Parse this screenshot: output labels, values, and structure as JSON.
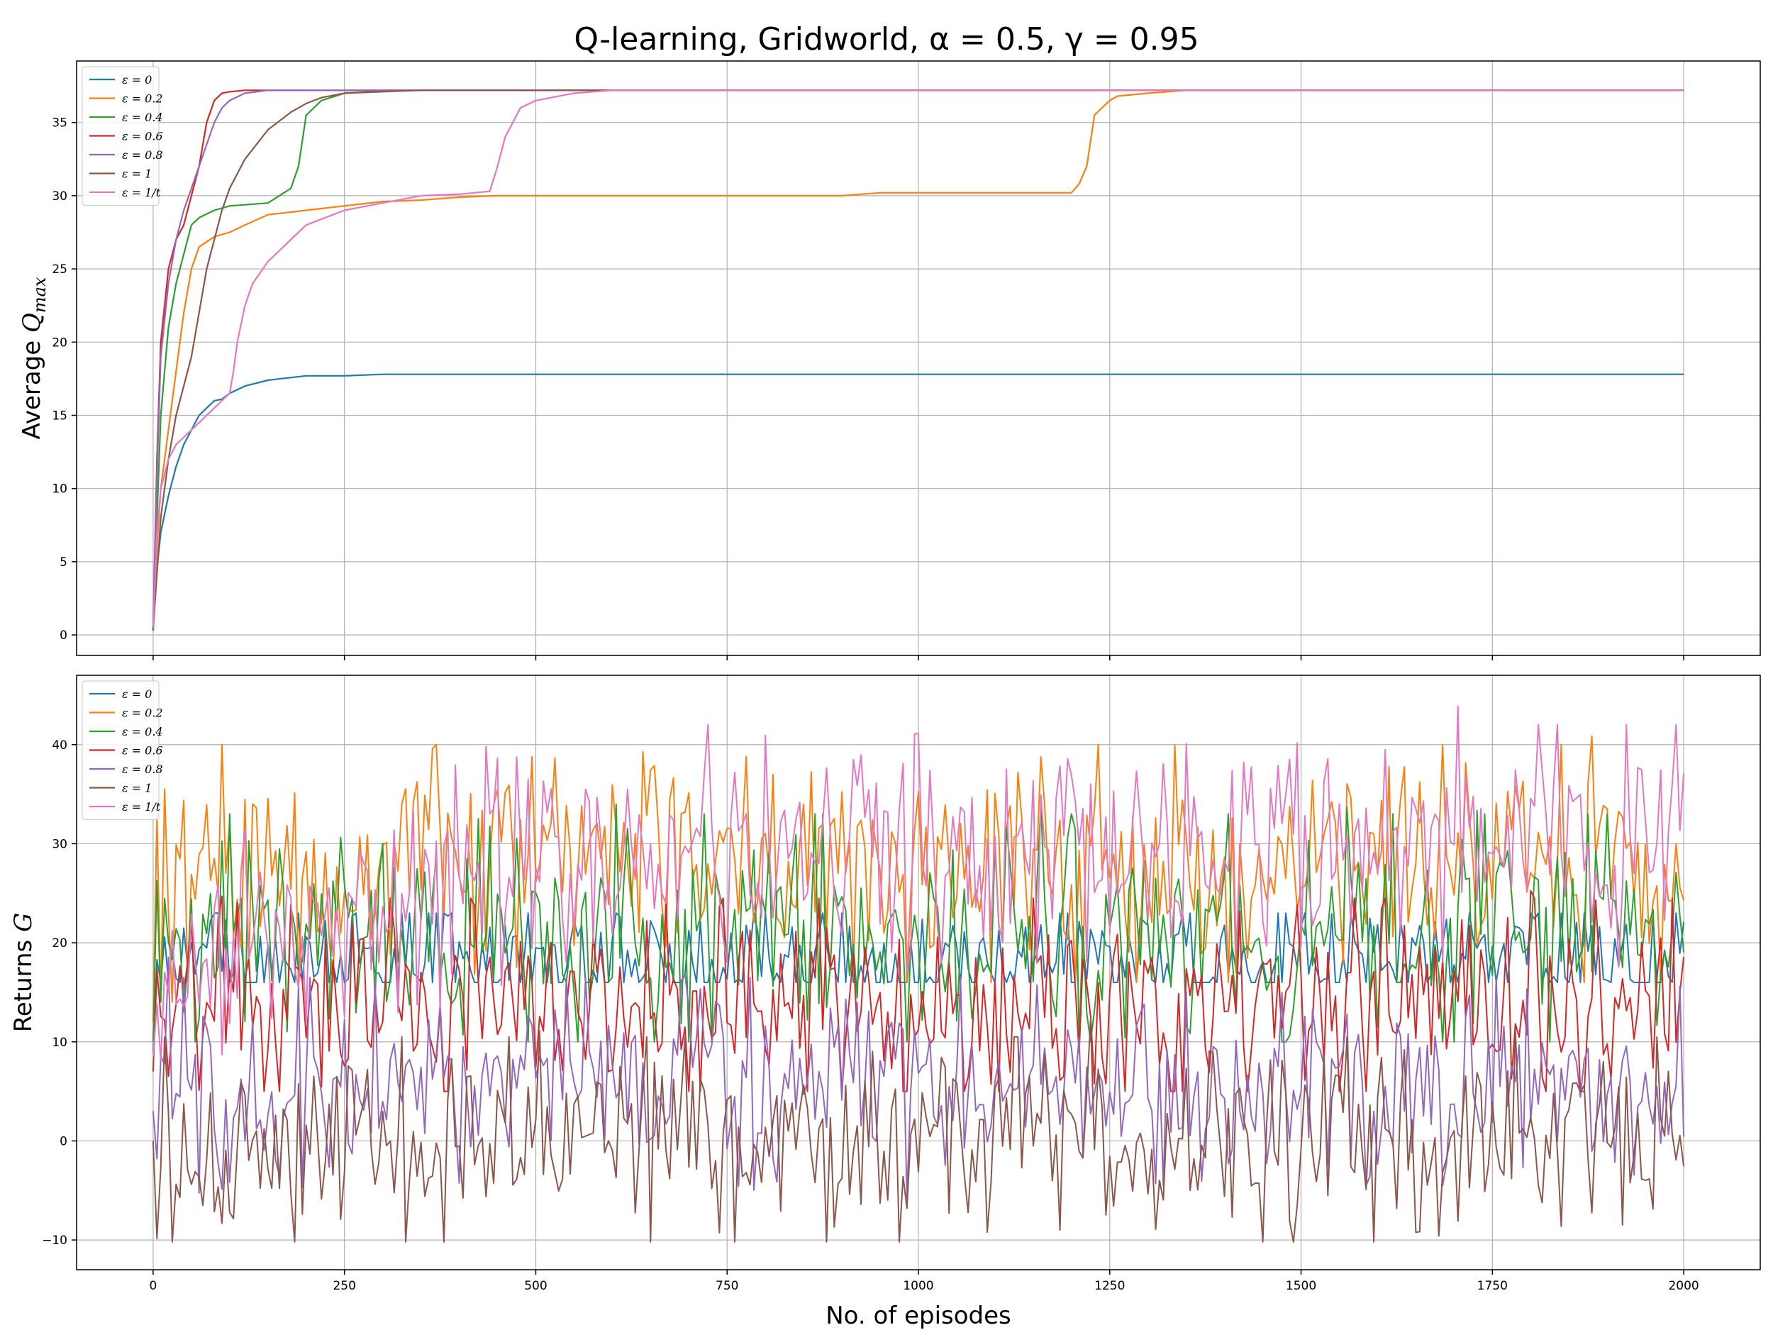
{
  "figure": {
    "title": "Q-learning, Gridworld, α = 0.5, γ = 0.95"
  },
  "chart_data": [
    {
      "type": "line",
      "ylabel": "Average Q_max",
      "xlabel": "",
      "xlim": [
        -100,
        2100
      ],
      "ylim": [
        -1.4,
        39.2
      ],
      "xticks": [
        0,
        250,
        500,
        750,
        1000,
        1250,
        1500,
        1750,
        2000
      ],
      "yticks": [
        0,
        5,
        10,
        15,
        20,
        25,
        30,
        35
      ],
      "grid": true,
      "legend_position": "top-left",
      "series": [
        {
          "name": "ε = 0",
          "color": "#1f77b4",
          "x": [
            0,
            5,
            10,
            20,
            30,
            40,
            50,
            60,
            70,
            80,
            90,
            100,
            120,
            150,
            200,
            250,
            300,
            400,
            2000
          ],
          "y": [
            0.3,
            4.5,
            7,
            9.5,
            11.5,
            13,
            14,
            15,
            15.5,
            16,
            16.1,
            16.5,
            17,
            17.4,
            17.7,
            17.7,
            17.8,
            17.8,
            17.8
          ]
        },
        {
          "name": "ε = 0.2",
          "color": "#ff7f0e",
          "x": [
            0,
            5,
            10,
            20,
            30,
            40,
            50,
            60,
            80,
            100,
            120,
            150,
            200,
            250,
            300,
            350,
            400,
            450,
            500,
            900,
            950,
            1000,
            1200,
            1210,
            1220,
            1230,
            1240,
            1250,
            1260,
            1300,
            1350,
            2000
          ],
          "y": [
            0.5,
            6,
            10,
            14,
            18,
            22,
            25,
            26.5,
            27.2,
            27.5,
            28,
            28.7,
            29,
            29.3,
            29.6,
            29.7,
            29.9,
            30,
            30,
            30,
            30.2,
            30.2,
            30.2,
            30.8,
            32,
            35.5,
            36,
            36.5,
            36.8,
            37,
            37.2,
            37.2
          ]
        },
        {
          "name": "ε = 0.4",
          "color": "#2ca02c",
          "x": [
            0,
            5,
            10,
            20,
            30,
            40,
            50,
            60,
            80,
            100,
            150,
            180,
            190,
            200,
            210,
            220,
            250,
            280,
            300,
            2000
          ],
          "y": [
            0.4,
            8,
            15,
            21,
            24,
            26,
            28,
            28.5,
            29,
            29.3,
            29.5,
            30.5,
            32,
            35.5,
            36,
            36.5,
            37,
            37.1,
            37.2,
            37.2
          ]
        },
        {
          "name": "ε = 0.6",
          "color": "#d62728",
          "x": [
            0,
            5,
            10,
            20,
            30,
            40,
            50,
            60,
            70,
            80,
            90,
            100,
            120,
            150,
            2000
          ],
          "y": [
            0.5,
            12,
            20,
            25,
            27,
            28,
            30,
            32,
            35,
            36.5,
            37,
            37.1,
            37.2,
            37.2,
            37.2
          ]
        },
        {
          "name": "ε = 0.8",
          "color": "#9467bd",
          "x": [
            0,
            5,
            10,
            20,
            30,
            40,
            50,
            60,
            70,
            80,
            90,
            100,
            120,
            150,
            2000
          ],
          "y": [
            0.5,
            11,
            19,
            24,
            27,
            29,
            30.5,
            32,
            33.5,
            35,
            36,
            36.5,
            37,
            37.2,
            37.2
          ]
        },
        {
          "name": "ε = 1",
          "color": "#8c564b",
          "x": [
            0,
            10,
            20,
            30,
            40,
            50,
            60,
            70,
            80,
            90,
            100,
            120,
            150,
            180,
            200,
            220,
            250,
            300,
            350,
            2000
          ],
          "y": [
            0.4,
            8,
            12,
            15,
            17,
            19,
            22,
            25,
            27,
            29,
            30.5,
            32.5,
            34.5,
            35.7,
            36.3,
            36.7,
            37,
            37.1,
            37.2,
            37.2
          ]
        },
        {
          "name": "ε = 1/t",
          "color": "#e377c2",
          "x": [
            0,
            5,
            10,
            20,
            30,
            40,
            50,
            60,
            80,
            100,
            105,
            110,
            120,
            130,
            150,
            180,
            200,
            250,
            300,
            350,
            400,
            440,
            450,
            460,
            470,
            480,
            500,
            550,
            600,
            2000
          ],
          "y": [
            0.5,
            7,
            10,
            12,
            13,
            13.5,
            14,
            14.5,
            15.5,
            16.5,
            18,
            20,
            22.5,
            24,
            25.5,
            27,
            28,
            29,
            29.5,
            30,
            30.1,
            30.3,
            32,
            34,
            35,
            36,
            36.5,
            37,
            37.2,
            37.2
          ]
        }
      ]
    },
    {
      "type": "line",
      "ylabel": "Returns G",
      "xlabel": "No. of episodes",
      "xlim": [
        -100,
        2100
      ],
      "ylim": [
        -13,
        47
      ],
      "xticks": [
        0,
        250,
        500,
        750,
        1000,
        1250,
        1500,
        1750,
        2000
      ],
      "yticks": [
        -10,
        0,
        10,
        20,
        30,
        40
      ],
      "grid": true,
      "legend_position": "top-left",
      "series": [
        {
          "name": "ε = 0",
          "color": "#1f77b4",
          "episodes": 2000,
          "x_step": 5,
          "mean_start": 18,
          "mean_end": 18,
          "spread": 2.5,
          "warmup": 20,
          "min": 16,
          "max": 23
        },
        {
          "name": "ε = 0.2",
          "color": "#ff7f0e",
          "episodes": 2000,
          "x_step": 5,
          "mean_start": 24,
          "mean_end": 28,
          "spread": 4,
          "warmup": 60,
          "min": 14,
          "max": 41
        },
        {
          "name": "ε = 0.4",
          "color": "#2ca02c",
          "episodes": 2000,
          "x_step": 5,
          "mean_start": 20,
          "mean_end": 21,
          "spread": 4,
          "warmup": 60,
          "min": 10,
          "max": 34
        },
        {
          "name": "ε = 0.6",
          "color": "#d62728",
          "episodes": 2000,
          "x_step": 5,
          "mean_start": 14,
          "mean_end": 14,
          "spread": 3.5,
          "warmup": 60,
          "min": 5,
          "max": 30
        },
        {
          "name": "ε = 0.8",
          "color": "#9467bd",
          "episodes": 2000,
          "x_step": 5,
          "mean_start": 6,
          "mean_end": 6,
          "spread": 3.5,
          "warmup": 60,
          "min": -7.5,
          "max": 19
        },
        {
          "name": "ε = 1",
          "color": "#8c564b",
          "episodes": 2000,
          "x_step": 5,
          "mean_start": 0,
          "mean_end": 0,
          "spread": 3.5,
          "warmup": 60,
          "min": -10.2,
          "max": 13
        },
        {
          "name": "ε = 1/t",
          "color": "#e377c2",
          "episodes": 2000,
          "x_step": 5,
          "mean_start": 17,
          "mean_end": 30,
          "spread": 4,
          "warmup": 480,
          "min": 8,
          "max": 44
        }
      ]
    }
  ]
}
